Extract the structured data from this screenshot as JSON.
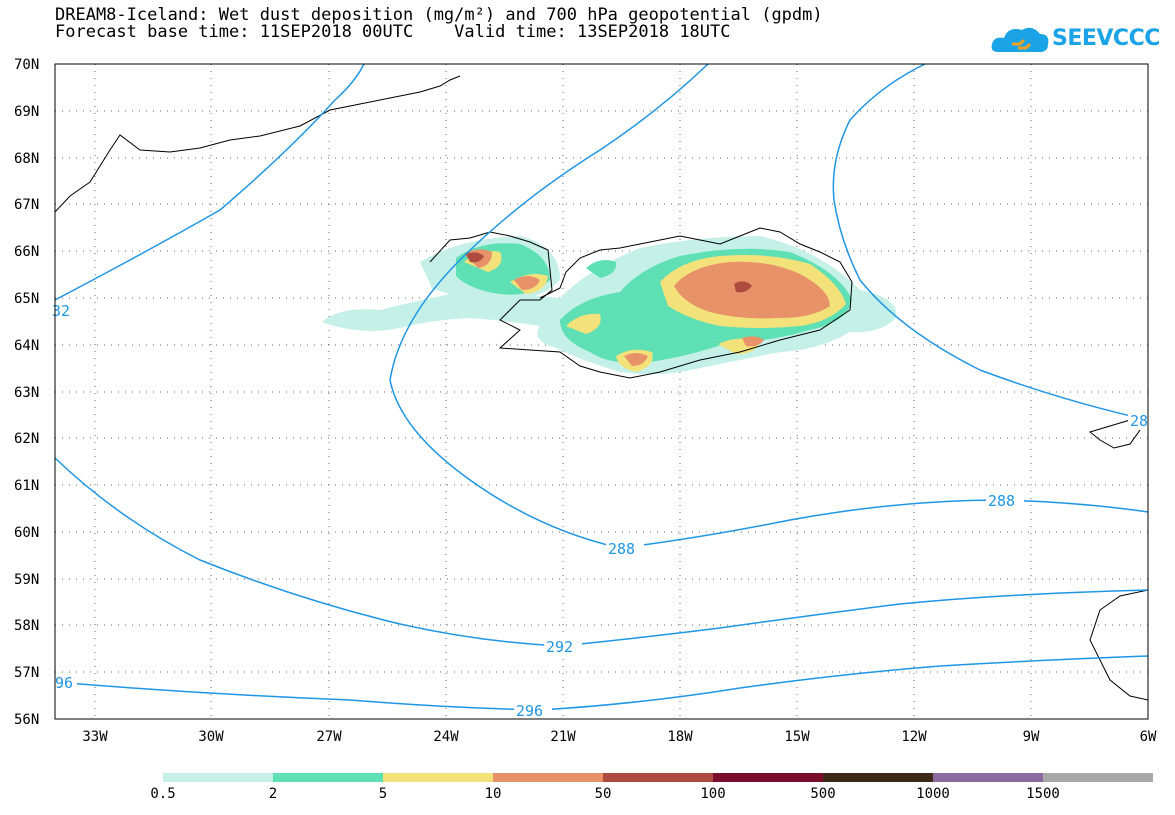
{
  "title": {
    "line1": "DREAM8-Iceland: Wet dust deposition (mg/m²) and 700 hPa geopotential (gpdm)",
    "line2": "Forecast base time: 11SEP2018 00UTC    Valid time: 13SEP2018 18UTC"
  },
  "logo": {
    "text": "SEEVCCC",
    "color": "#1aa3e6"
  },
  "map": {
    "lat_labels": [
      "70N",
      "69N",
      "68N",
      "67N",
      "66N",
      "65N",
      "64N",
      "63N",
      "62N",
      "61N",
      "60N",
      "59N",
      "58N",
      "57N",
      "56N"
    ],
    "lon_labels": [
      "33W",
      "30W",
      "27W",
      "24W",
      "21W",
      "18W",
      "15W",
      "12W",
      "9W",
      "6W"
    ],
    "contour_color": "#1e96e6",
    "contour_labels": [
      "32",
      "288",
      "288",
      "292",
      "296",
      "96",
      "28"
    ]
  },
  "colorbar": {
    "colors": [
      "#c4f0e8",
      "#5fe0b4",
      "#f3e27a",
      "#e8926a",
      "#ad4c3e",
      "#7a0e2a",
      "#3d2a1a",
      "#8c6aa0",
      "#a8a8a8"
    ],
    "labels": [
      "0.5",
      "2",
      "5",
      "10",
      "50",
      "100",
      "500",
      "1000",
      "1500"
    ]
  }
}
